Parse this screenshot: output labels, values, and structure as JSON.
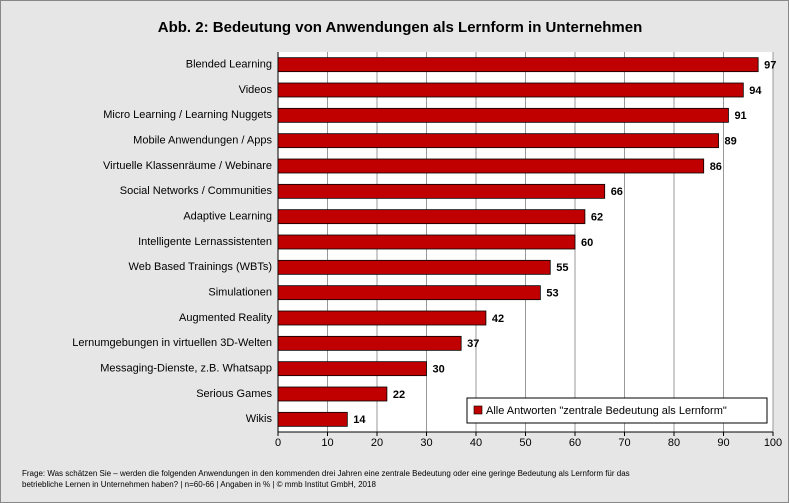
{
  "chart_data": {
    "type": "barh",
    "title": "Abb. 2: Bedeutung von Anwendungen als Lernform in Unternehmen",
    "categories": [
      "Blended Learning",
      "Videos",
      "Micro Learning / Learning Nuggets",
      "Mobile Anwendungen / Apps",
      "Virtuelle Klassenräume / Webinare",
      "Social Networks / Communities",
      "Adaptive Learning",
      "Intelligente Lernassistenten",
      "Web Based Trainings (WBTs)",
      "Simulationen",
      "Augmented Reality",
      "Lernumgebungen in virtuellen 3D-Welten",
      "Messaging-Dienste, z.B. Whatsapp",
      "Serious Games",
      "Wikis"
    ],
    "series": [
      {
        "name": "Alle Antworten \"zentrale Bedeutung als Lernform\"",
        "color": "#c00000",
        "values": [
          97,
          94,
          91,
          89,
          86,
          66,
          62,
          60,
          55,
          53,
          42,
          37,
          30,
          22,
          14
        ]
      }
    ],
    "xlim": [
      0,
      100
    ],
    "xticks": [
      0,
      10,
      20,
      30,
      40,
      50,
      60,
      70,
      80,
      90,
      100
    ],
    "grid": true,
    "legend": "lower right",
    "footnote": [
      "Frage: Was schätzen Sie – werden die folgenden Anwendungen in den kommenden drei Jahren eine zentrale Bedeutung oder eine geringe Bedeutung als Lernform für das",
      "betriebliche Lernen in Unternehmen haben? | n=60-66 | Angaben in % | © mmb Institut GmbH, 2018"
    ]
  }
}
